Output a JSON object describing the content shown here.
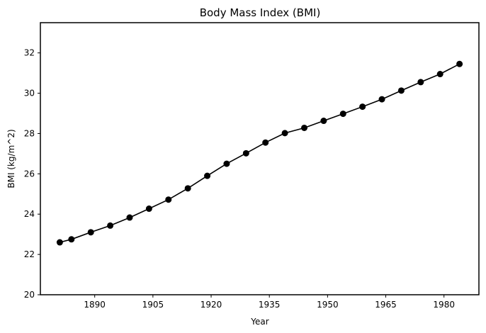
{
  "chart_data": {
    "type": "line",
    "title": "Body Mass Index (BMI)",
    "xlabel": "Year",
    "ylabel": "BMI (kg/m^2)",
    "xlim": [
      1876,
      1989
    ],
    "ylim": [
      20,
      33.5
    ],
    "xticks": [
      1890,
      1905,
      1920,
      1935,
      1950,
      1965,
      1980
    ],
    "yticks": [
      20,
      22,
      24,
      26,
      28,
      30,
      32
    ],
    "grid": false,
    "series": [
      {
        "color": "#000000",
        "marker": "circle",
        "x": [
          1881,
          1884,
          1889,
          1894,
          1899,
          1904,
          1909,
          1914,
          1919,
          1924,
          1929,
          1934,
          1939,
          1944,
          1949,
          1954,
          1959,
          1964,
          1969,
          1974,
          1979,
          1984
        ],
        "y": [
          22.6,
          22.75,
          23.1,
          23.43,
          23.83,
          24.27,
          24.72,
          25.28,
          25.9,
          26.5,
          27.02,
          27.55,
          28.02,
          28.28,
          28.63,
          28.98,
          29.33,
          29.7,
          30.13,
          30.55,
          30.95,
          31.45
        ]
      }
    ]
  }
}
